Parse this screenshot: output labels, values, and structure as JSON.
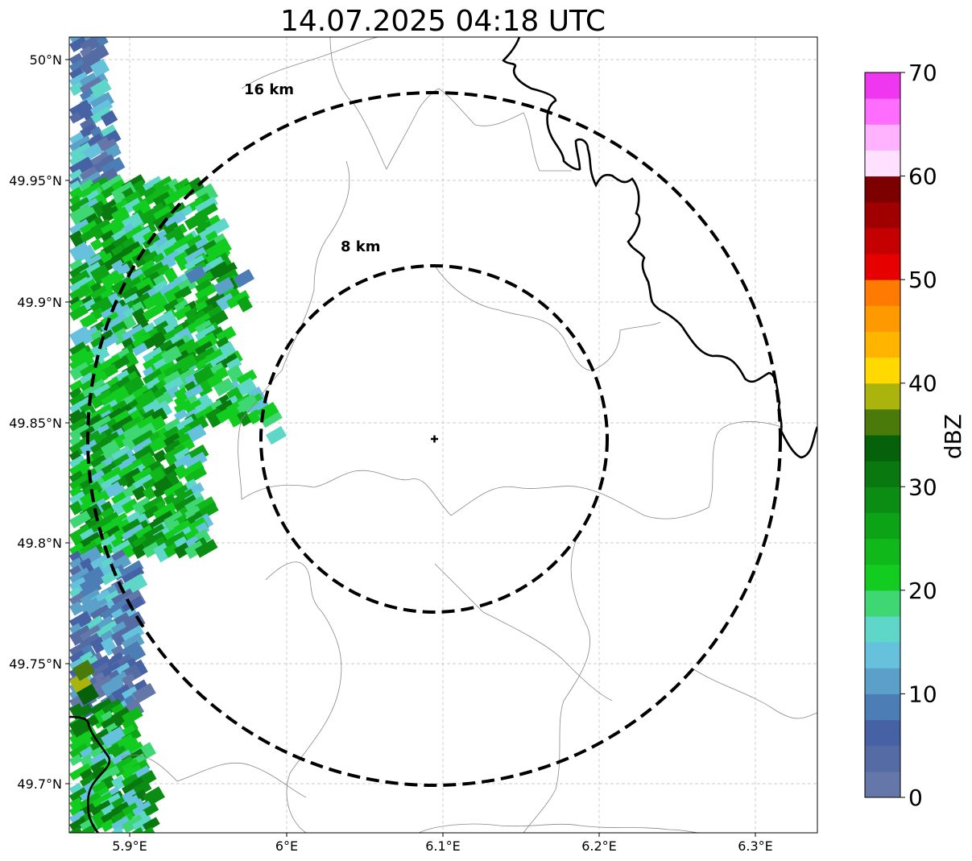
{
  "map": {
    "title": "14.07.2025 04:18 UTC",
    "x_ticks": [
      "5.9°E",
      "6°E",
      "6.1°E",
      "6.2°E",
      "6.3°E"
    ],
    "y_ticks": [
      "50°N",
      "49.95°N",
      "49.9°N",
      "49.85°N",
      "49.8°N",
      "49.75°N",
      "49.7°N"
    ],
    "range_rings": [
      {
        "label": "16 km",
        "radius_km": 16
      },
      {
        "label": "8 km",
        "radius_km": 8
      }
    ],
    "radar_marker": "plus-icon",
    "grid": true
  },
  "colorbar": {
    "label": "dBZ",
    "ticks": [
      "0",
      "10",
      "20",
      "30",
      "40",
      "50",
      "60",
      "70"
    ],
    "min": 0,
    "max": 70,
    "step": 2.5,
    "colors": [
      "#6477a8",
      "#556ba3",
      "#4662a5",
      "#4c7db5",
      "#5aa0c9",
      "#66c2dc",
      "#5ed6c8",
      "#3ed774",
      "#12cc1f",
      "#10b81a",
      "#0da316",
      "#0b8c13",
      "#08780f",
      "#05620a",
      "#4a7a0a",
      "#aab40c",
      "#ffd900",
      "#ffb500",
      "#ff9900",
      "#ff7a00",
      "#e60000",
      "#c40000",
      "#a00000",
      "#7c0000",
      "#ffe1ff",
      "#ffb2ff",
      "#ff6dff",
      "#f037f0"
    ]
  }
}
